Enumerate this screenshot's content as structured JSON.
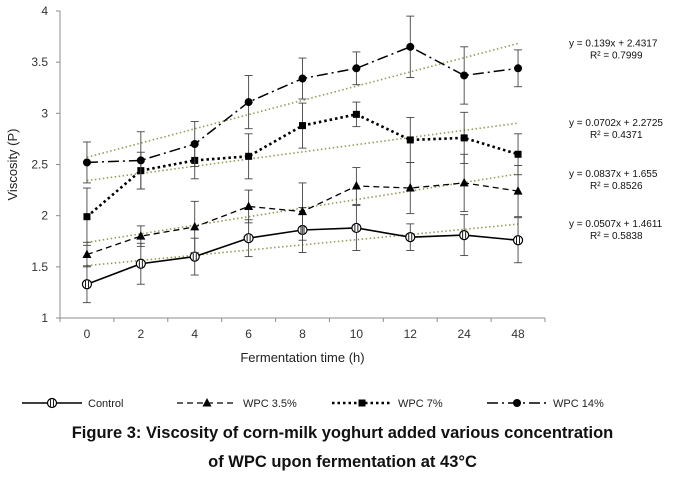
{
  "chart_data": {
    "type": "line",
    "categories": [
      "0",
      "2",
      "4",
      "6",
      "8",
      "10",
      "12",
      "24",
      "48"
    ],
    "xlabel": "Fermentation time (h)",
    "ylabel": "Viscosity (P)",
    "ylim": [
      1,
      4
    ],
    "yticks": [
      "1",
      "1.5",
      "2",
      "2.5",
      "3",
      "3.5",
      "4"
    ],
    "grid": false,
    "legend_position": "bottom",
    "series": [
      {
        "name": "Control",
        "marker": "circle-striped",
        "line_style": "solid",
        "values": [
          1.33,
          1.53,
          1.6,
          1.78,
          1.86,
          1.88,
          1.79,
          1.81,
          1.76
        ],
        "errors": [
          0.18,
          0.2,
          0.18,
          0.18,
          0.22,
          0.22,
          0.13,
          0.2,
          0.22
        ],
        "trendline": {
          "slope": 0.0507,
          "intercept": 1.4611
        },
        "equation": "y = 0.0507x + 1.4611",
        "r2": "R² = 0.5838"
      },
      {
        "name": "WPC 3.5%",
        "marker": "triangle",
        "line_style": "dashed",
        "values": [
          1.62,
          1.8,
          1.89,
          2.09,
          2.04,
          2.29,
          2.27,
          2.32,
          2.24
        ],
        "errors": [
          0.12,
          0.1,
          0.25,
          0.16,
          0.28,
          0.18,
          0.25,
          0.28,
          0.25
        ],
        "trendline": {
          "slope": 0.0837,
          "intercept": 1.655
        },
        "equation": "y = 0.0837x + 1.655",
        "r2": "R² = 0.8526"
      },
      {
        "name": "WPC 7%",
        "marker": "square",
        "line_style": "dotted",
        "values": [
          1.99,
          2.44,
          2.54,
          2.58,
          2.88,
          2.99,
          2.74,
          2.76,
          2.6
        ],
        "errors": [
          0.28,
          0.18,
          0.18,
          0.22,
          0.22,
          0.12,
          0.22,
          0.25,
          0.2
        ],
        "trendline": {
          "slope": 0.0702,
          "intercept": 2.2725
        },
        "equation": "y = 0.0702x + 2.2725",
        "r2": "R² = 0.4371"
      },
      {
        "name": "WPC 14%",
        "marker": "circle",
        "line_style": "dash-dot",
        "values": [
          2.52,
          2.54,
          2.7,
          3.11,
          3.34,
          3.44,
          3.65,
          3.37,
          3.44
        ],
        "errors": [
          0.2,
          0.28,
          0.22,
          0.26,
          0.2,
          0.16,
          0.3,
          0.28,
          0.18
        ],
        "trendline": {
          "slope": 0.139,
          "intercept": 2.4317
        },
        "equation": "y = 0.139x + 2.4317",
        "r2": "R² = 0.7999"
      }
    ],
    "colors": {
      "series": "#000000",
      "trendline": "#9a9a58",
      "axis": "#8c8c8c"
    }
  },
  "caption": {
    "line1": "Figure 3: Viscosity of corn-milk yoghurt added various concentration",
    "line2": "of WPC upon fermentation at 43°C"
  }
}
